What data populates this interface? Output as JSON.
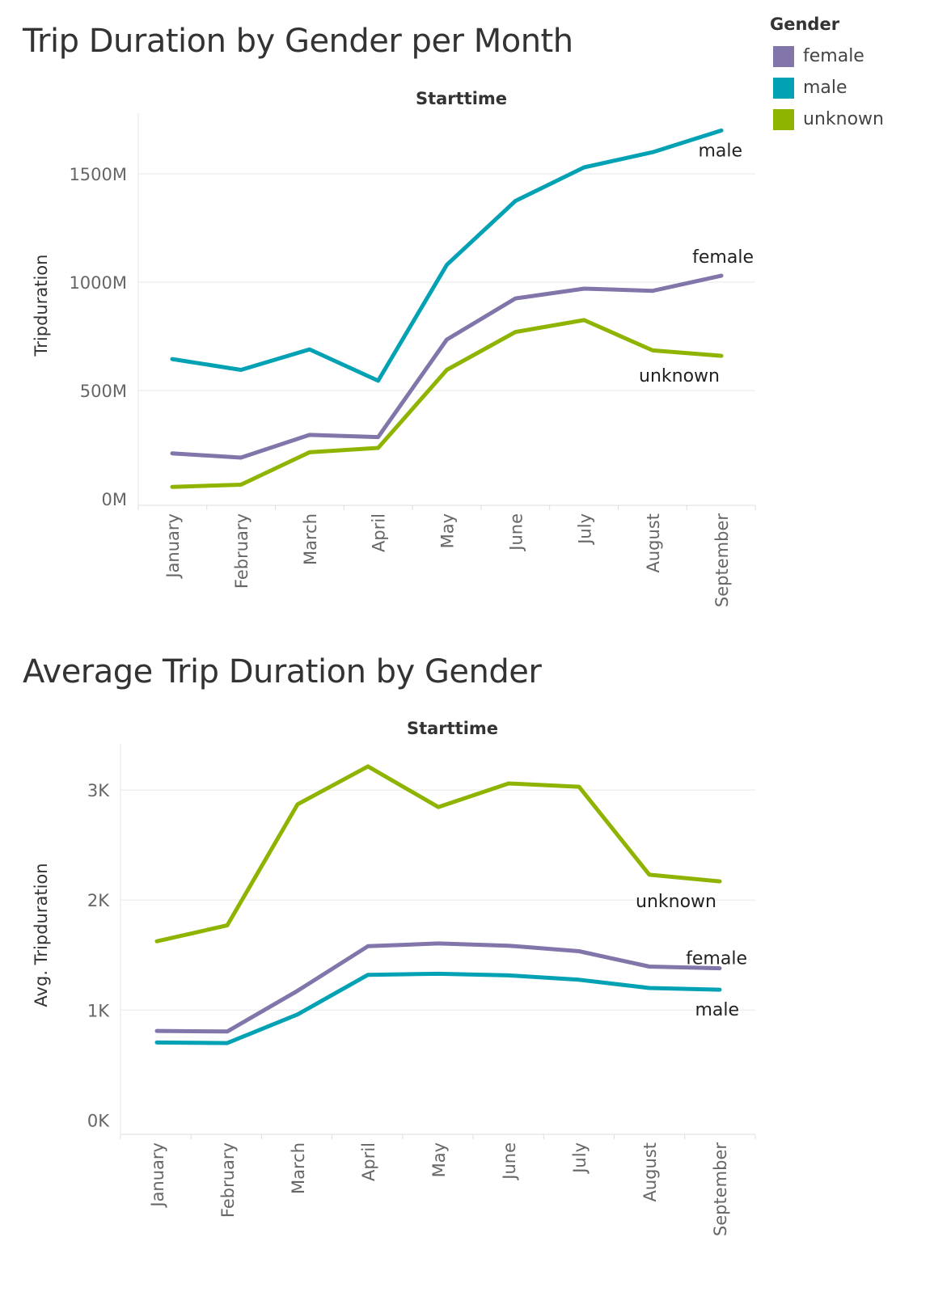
{
  "legend": {
    "title": "Gender",
    "items": [
      {
        "label": "female",
        "color": "#8175AA"
      },
      {
        "label": "male",
        "color": "#03A1B4"
      },
      {
        "label": "unknown",
        "color": "#8FB400"
      }
    ]
  },
  "chart_data": [
    {
      "type": "line",
      "title": "Trip Duration by Gender per Month",
      "header": "Starttime",
      "xlabel": "",
      "ylabel": "Tripduration",
      "ylim": [
        -30,
        1780
      ],
      "yticks": [
        0,
        500,
        1000,
        1500
      ],
      "ytick_labels": [
        "0M",
        "500M",
        "1000M",
        "1500M"
      ],
      "grid": true,
      "legend_position": "top-right",
      "categories": [
        "January",
        "February",
        "March",
        "April",
        "May",
        "June",
        "July",
        "August",
        "September"
      ],
      "series": [
        {
          "name": "female",
          "color": "#8175AA",
          "values": [
            210,
            190,
            295,
            285,
            735,
            925,
            970,
            960,
            1030
          ]
        },
        {
          "name": "male",
          "color": "#03A1B4",
          "values": [
            645,
            595,
            690,
            545,
            1080,
            1375,
            1530,
            1600,
            1700
          ]
        },
        {
          "name": "unknown",
          "color": "#8FB400",
          "values": [
            55,
            65,
            215,
            235,
            595,
            770,
            825,
            685,
            660
          ]
        }
      ]
    },
    {
      "type": "line",
      "title": "Average Trip Duration by Gender",
      "header": "Starttime",
      "xlabel": "",
      "ylabel": "Avg. Tripduration",
      "ylim": [
        -130,
        3420
      ],
      "yticks": [
        0,
        1000,
        2000,
        3000
      ],
      "ytick_labels": [
        "0K",
        "1K",
        "2K",
        "3K"
      ],
      "grid": true,
      "legend_position": "top-right",
      "categories": [
        "January",
        "February",
        "March",
        "April",
        "May",
        "June",
        "July",
        "August",
        "September"
      ],
      "series": [
        {
          "name": "female",
          "color": "#8175AA",
          "values": [
            810,
            805,
            1175,
            1580,
            1605,
            1585,
            1535,
            1395,
            1380
          ]
        },
        {
          "name": "male",
          "color": "#03A1B4",
          "values": [
            705,
            700,
            960,
            1320,
            1330,
            1315,
            1275,
            1200,
            1185
          ]
        },
        {
          "name": "unknown",
          "color": "#8FB400",
          "values": [
            1625,
            1770,
            2870,
            3215,
            2845,
            3060,
            3030,
            2230,
            2170
          ]
        }
      ]
    }
  ]
}
